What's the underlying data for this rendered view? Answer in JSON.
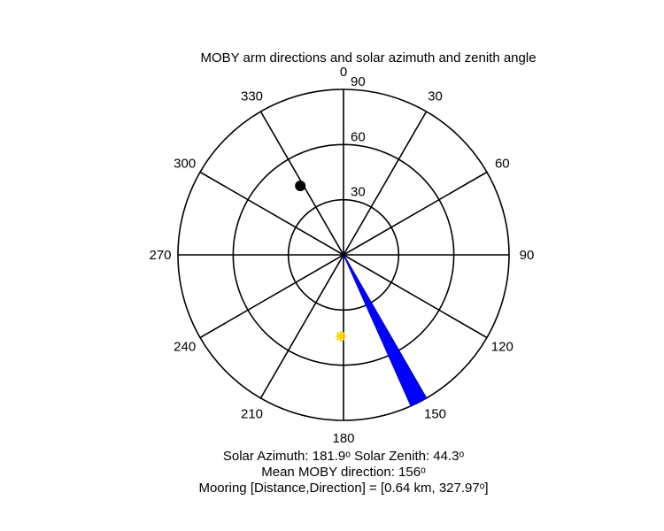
{
  "chart_data": {
    "type": "polar",
    "title": "MOBY arm directions and solar azimuth and zenith angle",
    "angular_axis": {
      "zero_direction": "top",
      "rotation": "clockwise",
      "tick_labels": [
        "0",
        "30",
        "60",
        "90",
        "120",
        "150",
        "180",
        "210",
        "240",
        "270",
        "300",
        "330"
      ],
      "tick_values": [
        0,
        30,
        60,
        90,
        120,
        150,
        180,
        210,
        240,
        270,
        300,
        330
      ]
    },
    "radial_axis": {
      "range": [
        0,
        90
      ],
      "tick_values": [
        30,
        60,
        90
      ],
      "tick_labels": [
        "30",
        "60",
        "90"
      ]
    },
    "grid": true,
    "series": [
      {
        "marker": "wedge",
        "color": "#0000ff",
        "angle_range": [
          150,
          156
        ],
        "radius": 90
      },
      {
        "marker": "filled-circle",
        "color": "#000000",
        "angle": 327.97,
        "radius": 44.3
      },
      {
        "marker": "asterisk",
        "color": "#ffd700",
        "angle": 181.9,
        "radius": 44.3
      }
    ],
    "captions": [
      "Solar Azimuth: 181.9ᵒ   Solar Zenith: 44.3ᵒ",
      "Mean MOBY direction: 156ᵒ",
      "Mooring [Distance,Direction] = [0.64 km, 327.97ᵒ]"
    ]
  }
}
